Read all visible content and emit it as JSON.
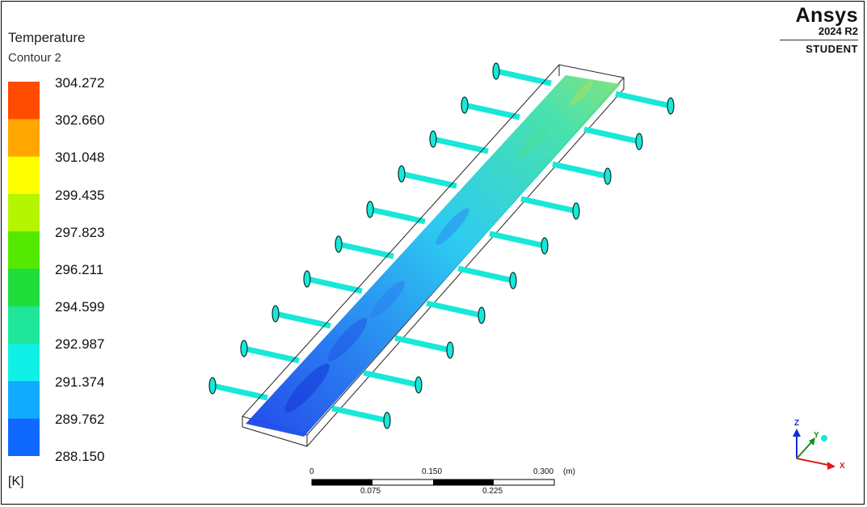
{
  "legend": {
    "title": "Temperature",
    "subtitle": "Contour 2",
    "levels": [
      "304.272",
      "302.660",
      "301.048",
      "299.435",
      "297.823",
      "296.211",
      "294.599",
      "292.987",
      "291.374",
      "289.762",
      "288.150"
    ],
    "colors": [
      "#ff4b00",
      "#ffa600",
      "#ffff00",
      "#b5f500",
      "#55e800",
      "#1fdc3a",
      "#1fe69a",
      "#10f0e6",
      "#11aaff",
      "#1069ff",
      "#0028ff"
    ],
    "unit": "[K]"
  },
  "brand": {
    "name": "Ansys",
    "version": "2024 R2",
    "edition": "STUDENT"
  },
  "scale_bar": {
    "top_labels": [
      "0",
      "0.150",
      "0.300"
    ],
    "bottom_labels": [
      "0.075",
      "0.225"
    ],
    "unit": "(m)"
  },
  "axes": {
    "z": "Z",
    "y": "Y",
    "x": "X",
    "colors": {
      "x": "#e0191b",
      "y": "#1a8a1a",
      "z": "#1030d0"
    }
  }
}
